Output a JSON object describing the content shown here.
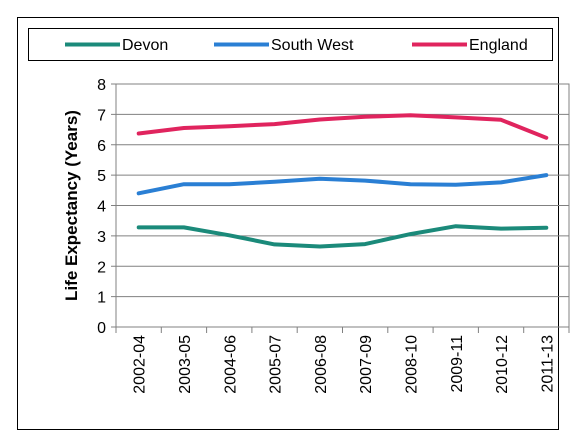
{
  "chart_data": {
    "type": "line",
    "title": "",
    "xlabel": "",
    "ylabel": "Life Expectancy (Years)",
    "ylim": [
      0,
      8
    ],
    "yticks": [
      0,
      1,
      2,
      3,
      4,
      5,
      6,
      7,
      8
    ],
    "grid": "horizontal",
    "legend_position": "top",
    "categories": [
      "2002-04",
      "2003-05",
      "2004-06",
      "2005-07",
      "2006-08",
      "2007-09",
      "2008-10",
      "2009-11",
      "2010-12",
      "2011-13"
    ],
    "series": [
      {
        "name": "Devon",
        "color": "#1b8a7a",
        "values": [
          3.28,
          3.28,
          3.02,
          2.72,
          2.65,
          2.73,
          3.06,
          3.32,
          3.24,
          3.27
        ]
      },
      {
        "name": "South West",
        "color": "#2a7fd4",
        "values": [
          4.4,
          4.7,
          4.7,
          4.78,
          4.88,
          4.82,
          4.7,
          4.68,
          4.76,
          5.0
        ]
      },
      {
        "name": "England",
        "color": "#e0245e",
        "values": [
          6.37,
          6.55,
          6.61,
          6.68,
          6.83,
          6.92,
          6.97,
          6.9,
          6.82,
          6.23
        ]
      }
    ]
  }
}
